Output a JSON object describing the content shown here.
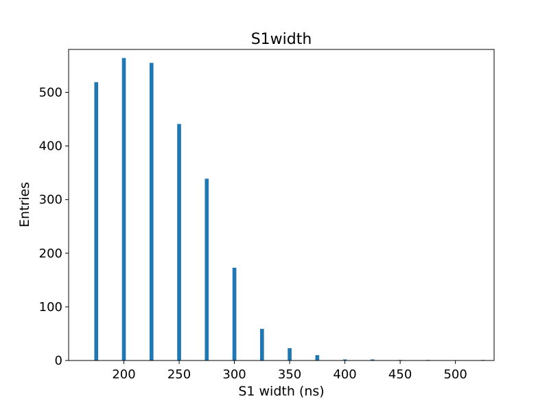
{
  "chart_data": {
    "type": "bar",
    "title": "S1width",
    "xlabel": "S1 width (ns)",
    "ylabel": "Entries",
    "xlim": [
      150,
      535
    ],
    "ylim": [
      0,
      580
    ],
    "xticks": [
      200,
      250,
      300,
      350,
      400,
      450,
      500
    ],
    "yticks": [
      0,
      100,
      200,
      300,
      400,
      500
    ],
    "x": [
      175,
      200,
      225,
      250,
      275,
      300,
      325,
      350,
      375,
      400,
      425,
      450,
      475,
      500,
      525
    ],
    "values": [
      519,
      564,
      555,
      441,
      339,
      173,
      59,
      23,
      10,
      2,
      2,
      1,
      1,
      0,
      1
    ],
    "bar_width": 3.5,
    "bar_color": "#1f77b4",
    "grid": false
  }
}
